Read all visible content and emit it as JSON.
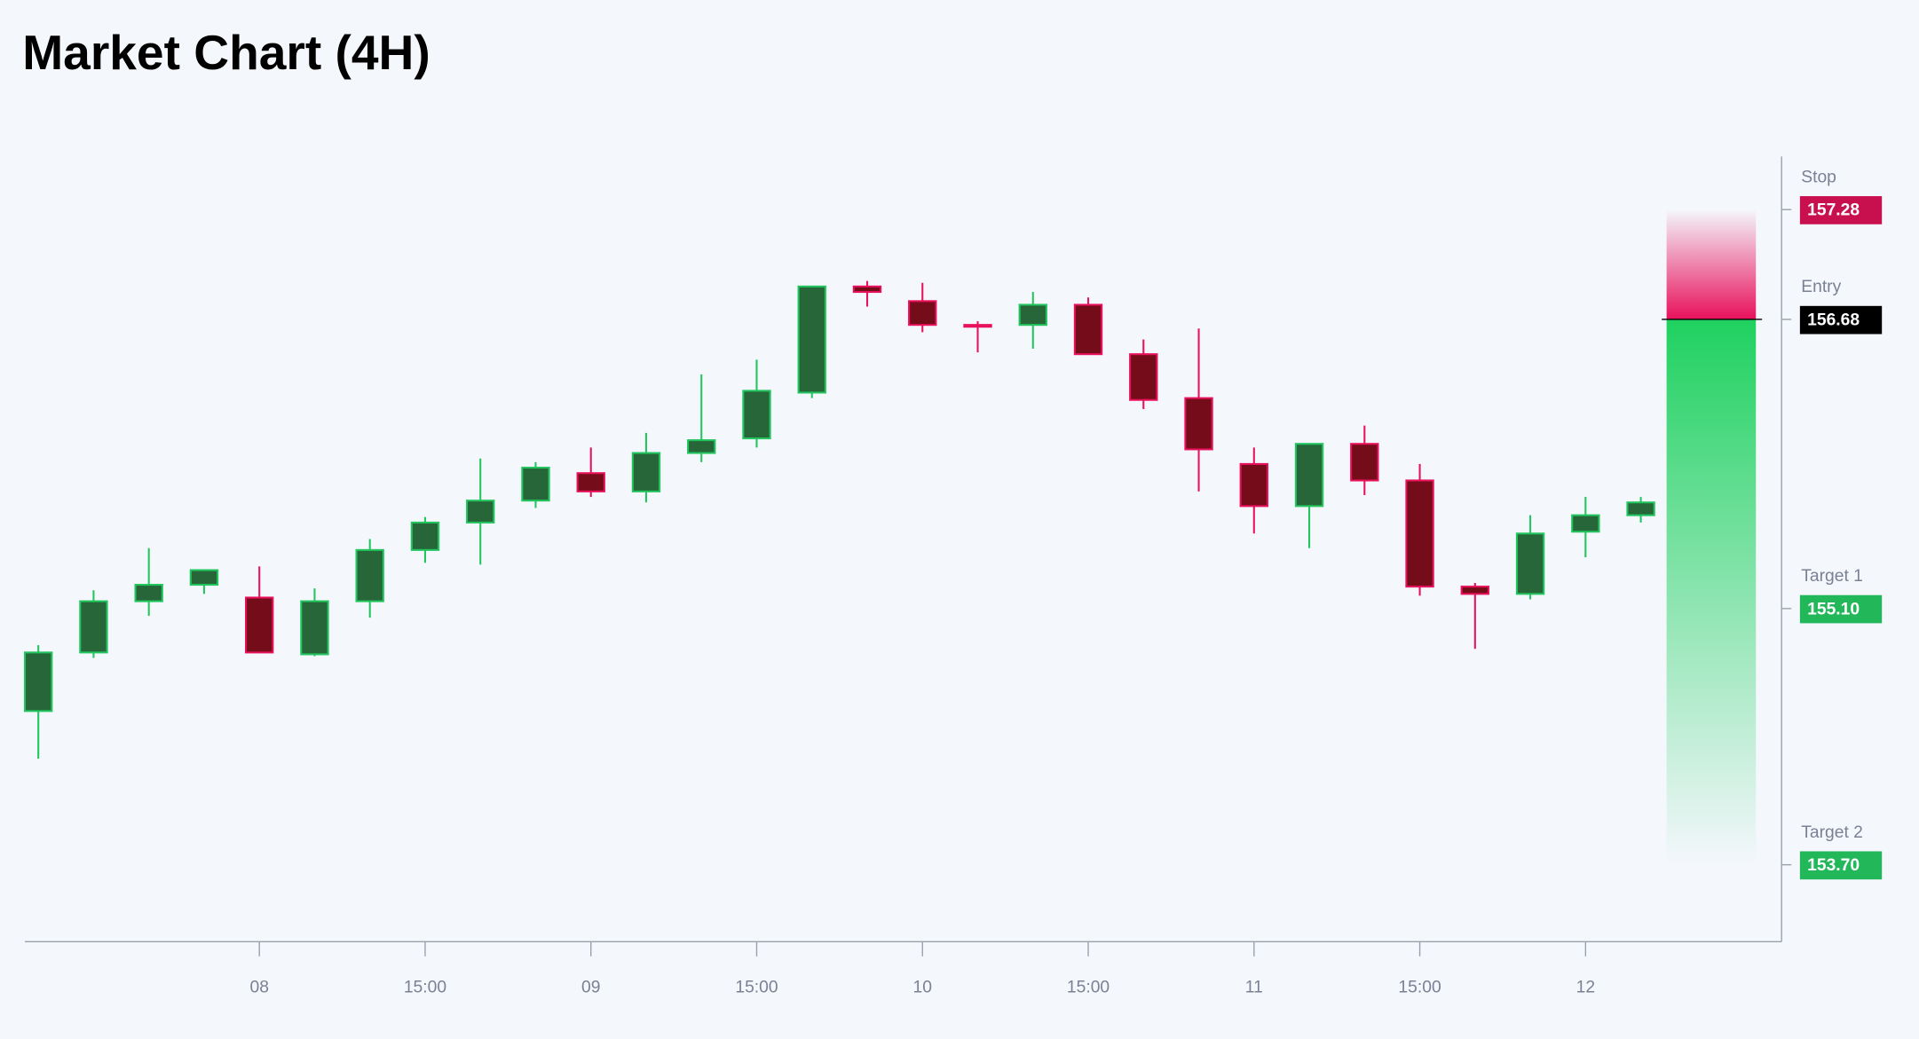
{
  "chart_data": {
    "type": "candlestick",
    "title": "Market Chart (4H)",
    "x": [
      null,
      null,
      null,
      null,
      "08",
      null,
      null,
      "15:00",
      null,
      null,
      "09",
      null,
      null,
      "15:00",
      null,
      null,
      "10",
      null,
      null,
      "15:00",
      null,
      null,
      "11",
      null,
      null,
      "15:00",
      null,
      null,
      "12",
      null
    ],
    "open": [
      154.54,
      154.86,
      155.14,
      155.23,
      155.16,
      154.85,
      155.14,
      155.42,
      155.57,
      155.69,
      155.84,
      155.74,
      155.95,
      156.03,
      156.28,
      156.86,
      156.78,
      156.65,
      156.65,
      156.76,
      156.49,
      156.25,
      155.89,
      155.66,
      156.0,
      155.8,
      155.22,
      155.18,
      155.52,
      155.61
    ],
    "high": [
      154.9,
      155.2,
      155.43,
      155.31,
      155.33,
      155.21,
      155.48,
      155.6,
      155.92,
      155.9,
      155.98,
      156.06,
      156.38,
      156.46,
      156.86,
      156.89,
      156.88,
      156.67,
      156.83,
      156.8,
      156.57,
      156.63,
      155.98,
      156.0,
      156.1,
      155.89,
      155.24,
      155.61,
      155.71,
      155.71
    ],
    "low": [
      154.28,
      154.83,
      155.06,
      155.18,
      154.86,
      154.84,
      155.05,
      155.35,
      155.34,
      155.65,
      155.71,
      155.68,
      155.9,
      155.98,
      156.25,
      156.75,
      156.61,
      156.5,
      156.52,
      156.49,
      156.19,
      155.74,
      155.51,
      155.43,
      155.72,
      155.17,
      154.88,
      155.15,
      155.38,
      155.57
    ],
    "close": [
      154.86,
      155.14,
      155.23,
      155.31,
      154.86,
      155.14,
      155.42,
      155.57,
      155.69,
      155.87,
      155.74,
      155.95,
      156.02,
      156.29,
      156.86,
      156.83,
      156.65,
      156.64,
      156.76,
      156.49,
      156.24,
      155.97,
      155.66,
      156.0,
      155.8,
      155.22,
      155.18,
      155.51,
      155.61,
      155.68
    ],
    "up_color": "#22c55e",
    "down_color": "#e8115b",
    "ylim": [
      153.28,
      157.57
    ],
    "levels": [
      {
        "name": "Stop",
        "value": 157.28,
        "label": "157.28",
        "color": "#c8104e"
      },
      {
        "name": "Entry",
        "value": 156.68,
        "label": "156.68",
        "color": "#000000"
      },
      {
        "name": "Target 1",
        "value": 155.1,
        "label": "155.10",
        "color": "#22b85a"
      },
      {
        "name": "Target 2",
        "value": 153.7,
        "label": "153.70",
        "color": "#22b85a"
      }
    ]
  }
}
